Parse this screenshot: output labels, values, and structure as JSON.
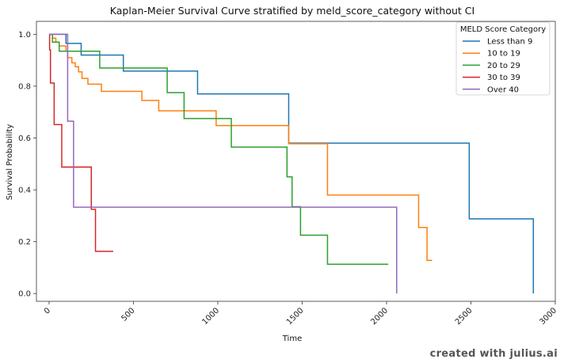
{
  "chart_data": {
    "type": "line",
    "step": true,
    "title": "Kaplan-Meier Survival Curve stratified by meld_score_category without CI",
    "xlabel": "Time",
    "ylabel": "Survival Probability",
    "xlim": [
      -75,
      3000
    ],
    "ylim": [
      -0.03,
      1.05
    ],
    "xticks": [
      0,
      500,
      1000,
      1500,
      2000,
      2500,
      3000
    ],
    "yticks": [
      0.0,
      0.2,
      0.4,
      0.6,
      0.8,
      1.0
    ],
    "xtick_labels": [
      "0",
      "500",
      "1000",
      "1500",
      "2000",
      "2500",
      "3000"
    ],
    "ytick_labels": [
      "0.0",
      "0.2",
      "0.4",
      "0.6",
      "0.8",
      "1.0"
    ],
    "grid": false,
    "legend": {
      "title": "MELD Score Category",
      "placement": "top-right"
    },
    "series": [
      {
        "name": "Less than 9",
        "color": "#1f77b4",
        "points": [
          [
            0,
            1.0
          ],
          [
            100,
            1.0
          ],
          [
            100,
            0.965
          ],
          [
            190,
            0.965
          ],
          [
            190,
            0.92
          ],
          [
            440,
            0.92
          ],
          [
            440,
            0.858
          ],
          [
            880,
            0.858
          ],
          [
            880,
            0.77
          ],
          [
            1420,
            0.77
          ],
          [
            1420,
            0.58
          ],
          [
            2490,
            0.58
          ],
          [
            2490,
            0.288
          ],
          [
            2870,
            0.288
          ],
          [
            2870,
            0.0
          ]
        ]
      },
      {
        "name": "10 to 19",
        "color": "#ff7f0e",
        "points": [
          [
            0,
            1.0
          ],
          [
            20,
            1.0
          ],
          [
            20,
            0.985
          ],
          [
            40,
            0.985
          ],
          [
            40,
            0.97
          ],
          [
            60,
            0.97
          ],
          [
            60,
            0.955
          ],
          [
            100,
            0.955
          ],
          [
            100,
            0.935
          ],
          [
            110,
            0.935
          ],
          [
            110,
            0.91
          ],
          [
            135,
            0.91
          ],
          [
            135,
            0.89
          ],
          [
            155,
            0.89
          ],
          [
            155,
            0.875
          ],
          [
            175,
            0.875
          ],
          [
            175,
            0.855
          ],
          [
            195,
            0.855
          ],
          [
            195,
            0.83
          ],
          [
            230,
            0.83
          ],
          [
            230,
            0.808
          ],
          [
            310,
            0.808
          ],
          [
            310,
            0.78
          ],
          [
            550,
            0.78
          ],
          [
            550,
            0.745
          ],
          [
            650,
            0.745
          ],
          [
            650,
            0.705
          ],
          [
            990,
            0.705
          ],
          [
            990,
            0.648
          ],
          [
            1420,
            0.648
          ],
          [
            1420,
            0.578
          ],
          [
            1650,
            0.578
          ],
          [
            1650,
            0.38
          ],
          [
            2190,
            0.38
          ],
          [
            2190,
            0.255
          ],
          [
            2240,
            0.255
          ],
          [
            2240,
            0.128
          ],
          [
            2270,
            0.128
          ]
        ]
      },
      {
        "name": "20 to 29",
        "color": "#2ca02c",
        "points": [
          [
            0,
            1.0
          ],
          [
            20,
            1.0
          ],
          [
            20,
            0.97
          ],
          [
            60,
            0.97
          ],
          [
            60,
            0.935
          ],
          [
            300,
            0.935
          ],
          [
            300,
            0.87
          ],
          [
            700,
            0.87
          ],
          [
            700,
            0.775
          ],
          [
            800,
            0.775
          ],
          [
            800,
            0.675
          ],
          [
            1080,
            0.675
          ],
          [
            1080,
            0.565
          ],
          [
            1410,
            0.565
          ],
          [
            1410,
            0.45
          ],
          [
            1440,
            0.45
          ],
          [
            1440,
            0.335
          ],
          [
            1490,
            0.335
          ],
          [
            1490,
            0.225
          ],
          [
            1650,
            0.225
          ],
          [
            1650,
            0.113
          ],
          [
            2010,
            0.113
          ]
        ]
      },
      {
        "name": "30 to 39",
        "color": "#d62728",
        "points": [
          [
            0,
            1.0
          ],
          [
            3,
            1.0
          ],
          [
            3,
            0.94
          ],
          [
            8,
            0.94
          ],
          [
            8,
            0.812
          ],
          [
            30,
            0.812
          ],
          [
            30,
            0.652
          ],
          [
            75,
            0.652
          ],
          [
            75,
            0.488
          ],
          [
            250,
            0.488
          ],
          [
            250,
            0.325
          ],
          [
            275,
            0.325
          ],
          [
            275,
            0.163
          ],
          [
            380,
            0.163
          ]
        ]
      },
      {
        "name": "Over 40",
        "color": "#9467bd",
        "points": [
          [
            0,
            1.0
          ],
          [
            110,
            1.0
          ],
          [
            110,
            0.665
          ],
          [
            145,
            0.665
          ],
          [
            145,
            0.333
          ],
          [
            2060,
            0.333
          ],
          [
            2060,
            0.0
          ]
        ]
      }
    ]
  },
  "watermark": "created with julius.ai"
}
